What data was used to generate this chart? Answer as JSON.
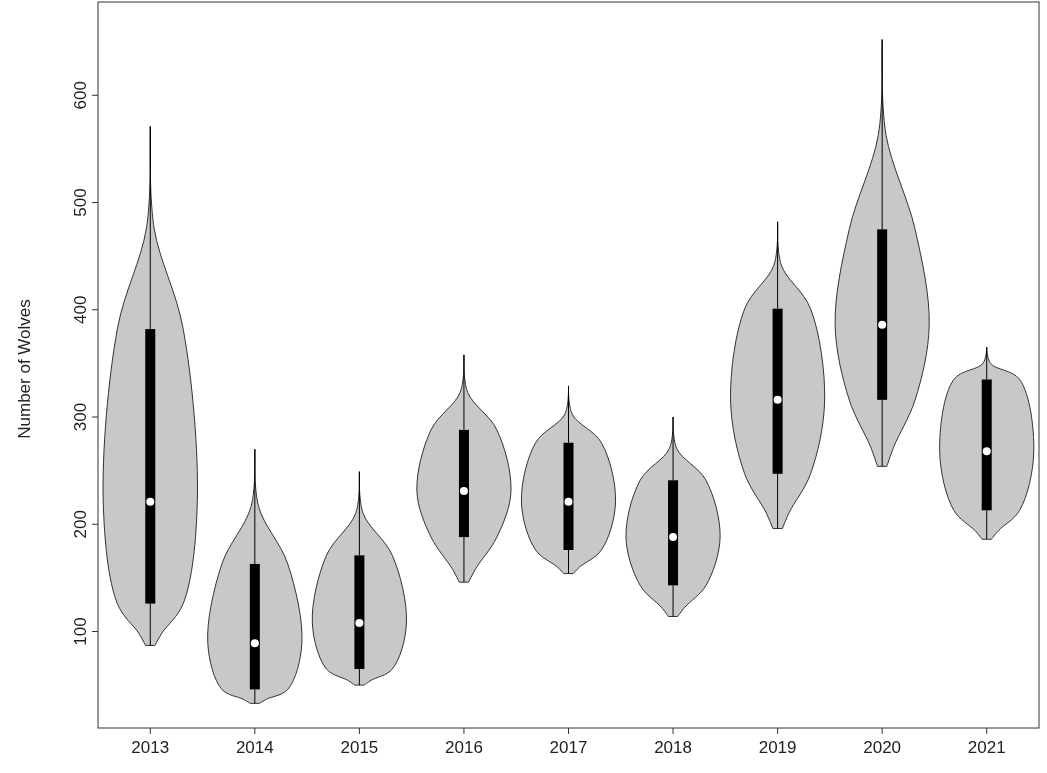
{
  "chart_data": {
    "type": "box",
    "ylabel": "Number of Wolves",
    "categories": [
      "2013",
      "2014",
      "2015",
      "2016",
      "2017",
      "2018",
      "2019",
      "2020",
      "2021"
    ],
    "color": "#000000",
    "ylim": [
      10,
      687
    ],
    "yticks": [
      100,
      200,
      300,
      400,
      500,
      600
    ],
    "boxes": [
      {
        "low": 87,
        "q1": 126,
        "median": 221,
        "q3": 382,
        "high": 571
      },
      {
        "low": 33,
        "q1": 46,
        "median": 89,
        "q3": 163,
        "high": 270
      },
      {
        "low": 50,
        "q1": 65,
        "median": 108,
        "q3": 171,
        "high": 249
      },
      {
        "low": 146,
        "q1": 188,
        "median": 231,
        "q3": 288,
        "high": 358
      },
      {
        "low": 154,
        "q1": 176,
        "median": 221,
        "q3": 276,
        "high": 329
      },
      {
        "low": 114,
        "q1": 143,
        "median": 188,
        "q3": 241,
        "high": 300
      },
      {
        "low": 196,
        "q1": 247,
        "median": 316,
        "q3": 401,
        "high": 482
      },
      {
        "low": 254,
        "q1": 316,
        "median": 386,
        "q3": 475,
        "high": 652
      },
      {
        "low": 186,
        "q1": 213,
        "median": 268,
        "q3": 335,
        "high": 365
      }
    ]
  }
}
